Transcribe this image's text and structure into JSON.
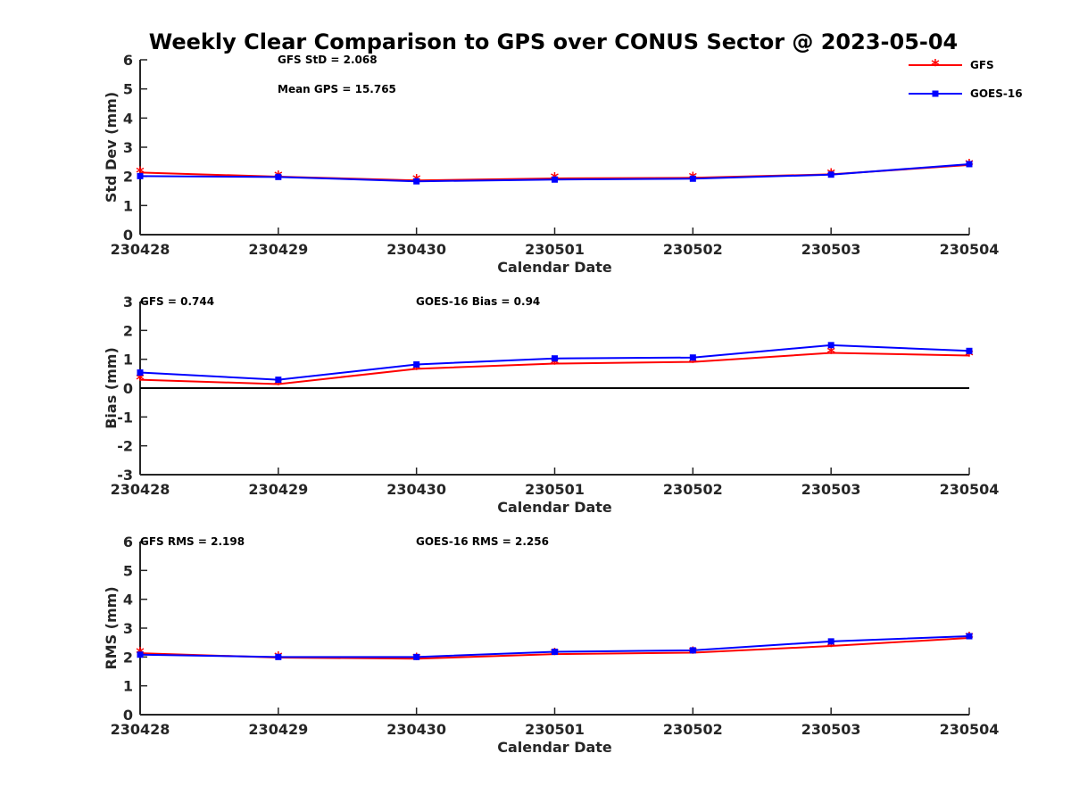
{
  "chart_data": {
    "type": "line",
    "title": "Weekly Clear Comparison to GPS over CONUS Sector @ 2023-05-04",
    "categories": [
      "230428",
      "230429",
      "230430",
      "230501",
      "230502",
      "230503",
      "230504"
    ],
    "legend": {
      "placement": "top-right",
      "entries": [
        {
          "name": "GFS",
          "color": "#ff0000",
          "marker": "asterisk"
        },
        {
          "name": "GOES-16",
          "color": "#0000ff",
          "marker": "square"
        }
      ]
    },
    "panels": [
      {
        "id": "std",
        "ylabel": "Std Dev (mm)",
        "xlabel": "Calendar Date",
        "ylim": [
          0,
          6
        ],
        "yticks": [
          "0",
          "1",
          "2",
          "3",
          "4",
          "5",
          "6"
        ],
        "annotations": [
          "GFS StD = 2.068",
          "Mean GPS = 15.765"
        ],
        "zero_line": false,
        "series": [
          {
            "name": "GFS",
            "color": "#ff0000",
            "values": [
              2.13,
              1.99,
              1.86,
              1.93,
              1.95,
              2.07,
              2.39
            ]
          },
          {
            "name": "GOES-16",
            "color": "#0000ff",
            "values": [
              2.01,
              1.98,
              1.83,
              1.89,
              1.92,
              2.06,
              2.42
            ]
          }
        ]
      },
      {
        "id": "bias",
        "ylabel": "Bias (mm)",
        "xlabel": "Calendar Date",
        "ylim": [
          -3,
          3
        ],
        "yticks": [
          "-3",
          "-2",
          "-1",
          "0",
          "1",
          "2",
          "3"
        ],
        "annotations": [
          "GFS = 0.744",
          "GOES-16 Bias  = 0.94"
        ],
        "zero_line": true,
        "series": [
          {
            "name": "GFS",
            "color": "#ff0000",
            "values": [
              0.29,
              0.14,
              0.67,
              0.85,
              0.91,
              1.22,
              1.13
            ]
          },
          {
            "name": "GOES-16",
            "color": "#0000ff",
            "values": [
              0.54,
              0.29,
              0.82,
              1.03,
              1.06,
              1.49,
              1.29
            ]
          }
        ]
      },
      {
        "id": "rms",
        "ylabel": "RMS (mm)",
        "xlabel": "Calendar Date",
        "ylim": [
          0,
          6
        ],
        "yticks": [
          "0",
          "1",
          "2",
          "3",
          "4",
          "5",
          "6"
        ],
        "annotations": [
          "GFS RMS = 2.198",
          "GOES-16 RMS = 2.256"
        ],
        "zero_line": false,
        "series": [
          {
            "name": "GFS",
            "color": "#ff0000",
            "values": [
              2.13,
              1.98,
              1.94,
              2.1,
              2.15,
              2.38,
              2.66
            ]
          },
          {
            "name": "GOES-16",
            "color": "#0000ff",
            "values": [
              2.08,
              2.0,
              2.0,
              2.18,
              2.23,
              2.54,
              2.72
            ]
          }
        ]
      }
    ]
  }
}
